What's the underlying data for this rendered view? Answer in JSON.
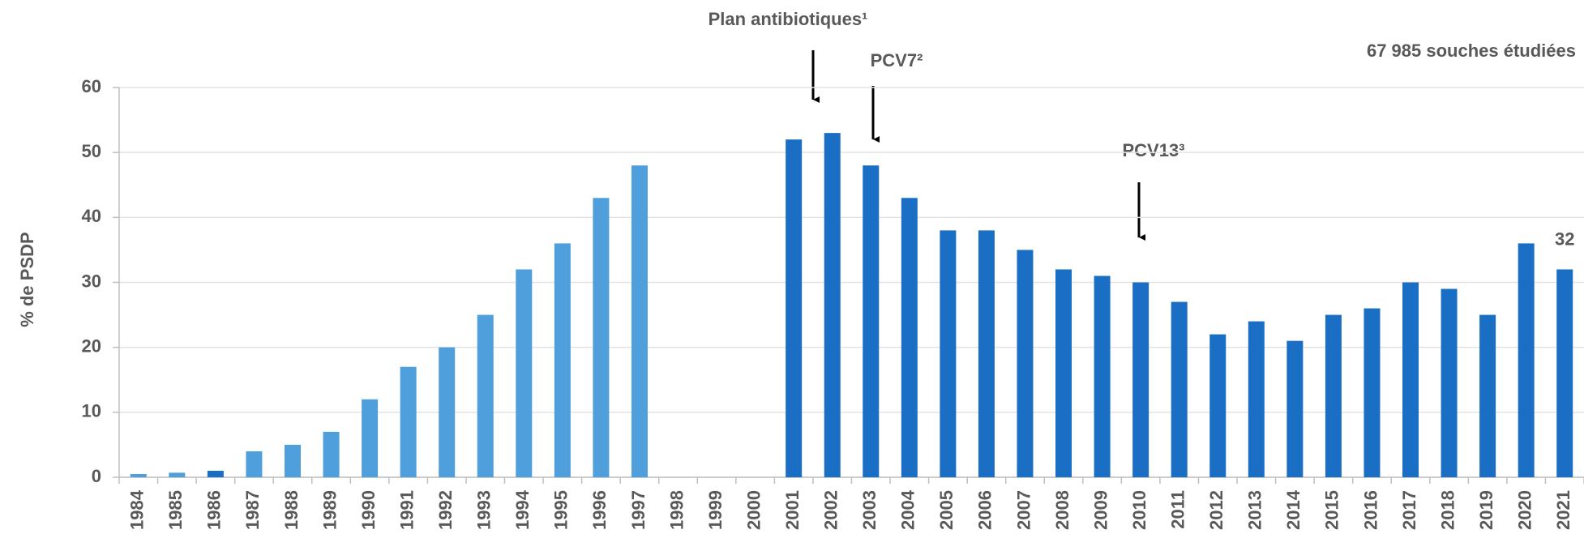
{
  "chart_data": {
    "type": "bar",
    "ylabel": "% de PSDP",
    "note": "67 985 souches étudiées",
    "annotations": [
      "Plan antibiotiques¹",
      "PCV7²",
      "PCV13³"
    ],
    "categories": [
      "1984",
      "1985",
      "1986",
      "1987",
      "1988",
      "1989",
      "1990",
      "1991",
      "1992",
      "1993",
      "1994",
      "1995",
      "1996",
      "1997",
      "1998",
      "1999",
      "2000",
      "2001",
      "2002",
      "2003",
      "2004",
      "2005",
      "2006",
      "2007",
      "2008",
      "2009",
      "2010",
      "2011",
      "2012",
      "2013",
      "2014",
      "2015",
      "2016",
      "2017",
      "2018",
      "2019",
      "2020",
      "2021"
    ],
    "values": [
      0.5,
      0.7,
      1,
      4,
      5,
      7,
      12,
      17,
      20,
      25,
      32,
      36,
      43,
      48,
      null,
      null,
      null,
      52,
      53,
      48,
      43,
      38,
      38,
      35,
      32,
      31,
      30,
      27,
      22,
      24,
      21,
      25,
      26,
      30,
      29,
      25,
      36,
      32
    ],
    "value_labels": [
      null,
      null,
      null,
      null,
      null,
      null,
      null,
      null,
      null,
      null,
      null,
      null,
      null,
      null,
      null,
      null,
      null,
      null,
      null,
      null,
      null,
      null,
      null,
      null,
      null,
      null,
      null,
      null,
      null,
      null,
      null,
      null,
      null,
      null,
      null,
      null,
      null,
      "32"
    ],
    "colors": [
      "#4f9fdc",
      "#4f9fdc",
      "#1a6fc4",
      "#4f9fdc",
      "#4f9fdc",
      "#4f9fdc",
      "#4f9fdc",
      "#4f9fdc",
      "#4f9fdc",
      "#4f9fdc",
      "#4f9fdc",
      "#4f9fdc",
      "#4f9fdc",
      "#4f9fdc",
      "#4f9fdc",
      "#4f9fdc",
      "#4f9fdc",
      "#1a6fc4",
      "#1a6fc4",
      "#1a6fc4",
      "#1a6fc4",
      "#1a6fc4",
      "#1a6fc4",
      "#1a6fc4",
      "#1a6fc4",
      "#1a6fc4",
      "#1a6fc4",
      "#1a6fc4",
      "#1a6fc4",
      "#1a6fc4",
      "#1a6fc4",
      "#1a6fc4",
      "#1a6fc4",
      "#1a6fc4",
      "#1a6fc4",
      "#1a6fc4",
      "#1a6fc4",
      "#1a6fc4"
    ],
    "ylim": [
      0,
      60
    ],
    "yticks": [
      0,
      10,
      20,
      30,
      40,
      50,
      60
    ],
    "grid": true
  }
}
